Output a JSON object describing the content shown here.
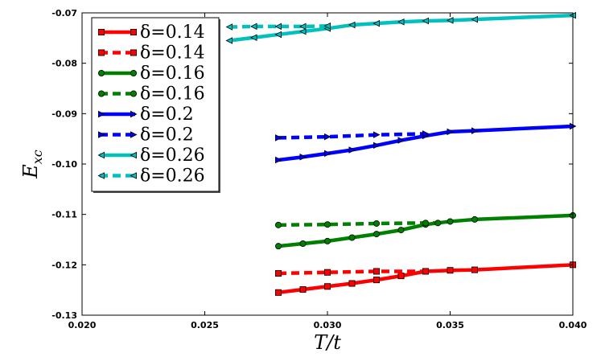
{
  "chart_data": {
    "type": "line",
    "title": "",
    "xlabel": "T/t",
    "ylabel": "E_xc",
    "xlim": [
      0.02,
      0.04
    ],
    "ylim": [
      -0.13,
      -0.07
    ],
    "xticks": [
      "0.020",
      "0.025",
      "0.030",
      "0.035",
      "0.040"
    ],
    "yticks": [
      "-0.07",
      "-0.08",
      "-0.09",
      "-0.10",
      "-0.11",
      "-0.12",
      "-0.13"
    ],
    "grid": false,
    "legend_position": "top-left",
    "series": [
      {
        "name": "δ=0.14",
        "color": "#ff0000",
        "dash": "solid",
        "marker": "square",
        "x": [
          0.028,
          0.029,
          0.03,
          0.031,
          0.032,
          0.033,
          0.034,
          0.035,
          0.036,
          0.04
        ],
        "y": [
          -0.1255,
          -0.1249,
          -0.1243,
          -0.1237,
          -0.123,
          -0.1222,
          -0.1213,
          -0.1211,
          -0.121,
          -0.12
        ]
      },
      {
        "name": "δ=0.14",
        "color": "#ff0000",
        "dash": "dashed",
        "marker": "square",
        "x": [
          0.028,
          0.03,
          0.032,
          0.034
        ],
        "y": [
          -0.1217,
          -0.1215,
          -0.1213,
          -0.1213
        ]
      },
      {
        "name": "δ=0.16",
        "color": "#008000",
        "dash": "solid",
        "marker": "circle",
        "x": [
          0.028,
          0.029,
          0.03,
          0.031,
          0.032,
          0.033,
          0.034,
          0.035,
          0.036,
          0.04
        ],
        "y": [
          -0.1163,
          -0.1158,
          -0.1153,
          -0.1146,
          -0.1139,
          -0.1131,
          -0.112,
          -0.1114,
          -0.111,
          -0.1102
        ]
      },
      {
        "name": "δ=0.16",
        "color": "#008000",
        "dash": "dashed",
        "marker": "circle",
        "x": [
          0.028,
          0.03,
          0.032,
          0.034,
          0.0345
        ],
        "y": [
          -0.1121,
          -0.112,
          -0.1118,
          -0.1117,
          -0.1117
        ]
      },
      {
        "name": "δ=0.2",
        "color": "#0000ff",
        "dash": "solid",
        "marker": "triangle-right",
        "x": [
          0.028,
          0.029,
          0.03,
          0.031,
          0.032,
          0.033,
          0.034,
          0.035,
          0.036,
          0.04
        ],
        "y": [
          -0.0992,
          -0.0986,
          -0.0979,
          -0.0972,
          -0.0963,
          -0.0953,
          -0.0944,
          -0.0936,
          -0.0934,
          -0.0925
        ]
      },
      {
        "name": "δ=0.2",
        "color": "#0000ff",
        "dash": "dashed",
        "marker": "triangle-right",
        "x": [
          0.028,
          0.03,
          0.032,
          0.034
        ],
        "y": [
          -0.0948,
          -0.0946,
          -0.0942,
          -0.094
        ]
      },
      {
        "name": "δ=0.26",
        "color": "#00c0c0",
        "dash": "solid",
        "marker": "triangle-left",
        "x": [
          0.026,
          0.027,
          0.028,
          0.029,
          0.03,
          0.031,
          0.032,
          0.033,
          0.034,
          0.035,
          0.036,
          0.04
        ],
        "y": [
          -0.0755,
          -0.0749,
          -0.0743,
          -0.0737,
          -0.0731,
          -0.0724,
          -0.0721,
          -0.0718,
          -0.0716,
          -0.0715,
          -0.0713,
          -0.0705
        ]
      },
      {
        "name": "δ=0.26",
        "color": "#00c0c0",
        "dash": "dashed",
        "marker": "triangle-left",
        "x": [
          0.026,
          0.027,
          0.028,
          0.029,
          0.03
        ],
        "y": [
          -0.0728,
          -0.0727,
          -0.0727,
          -0.0727,
          -0.0726
        ]
      }
    ]
  }
}
